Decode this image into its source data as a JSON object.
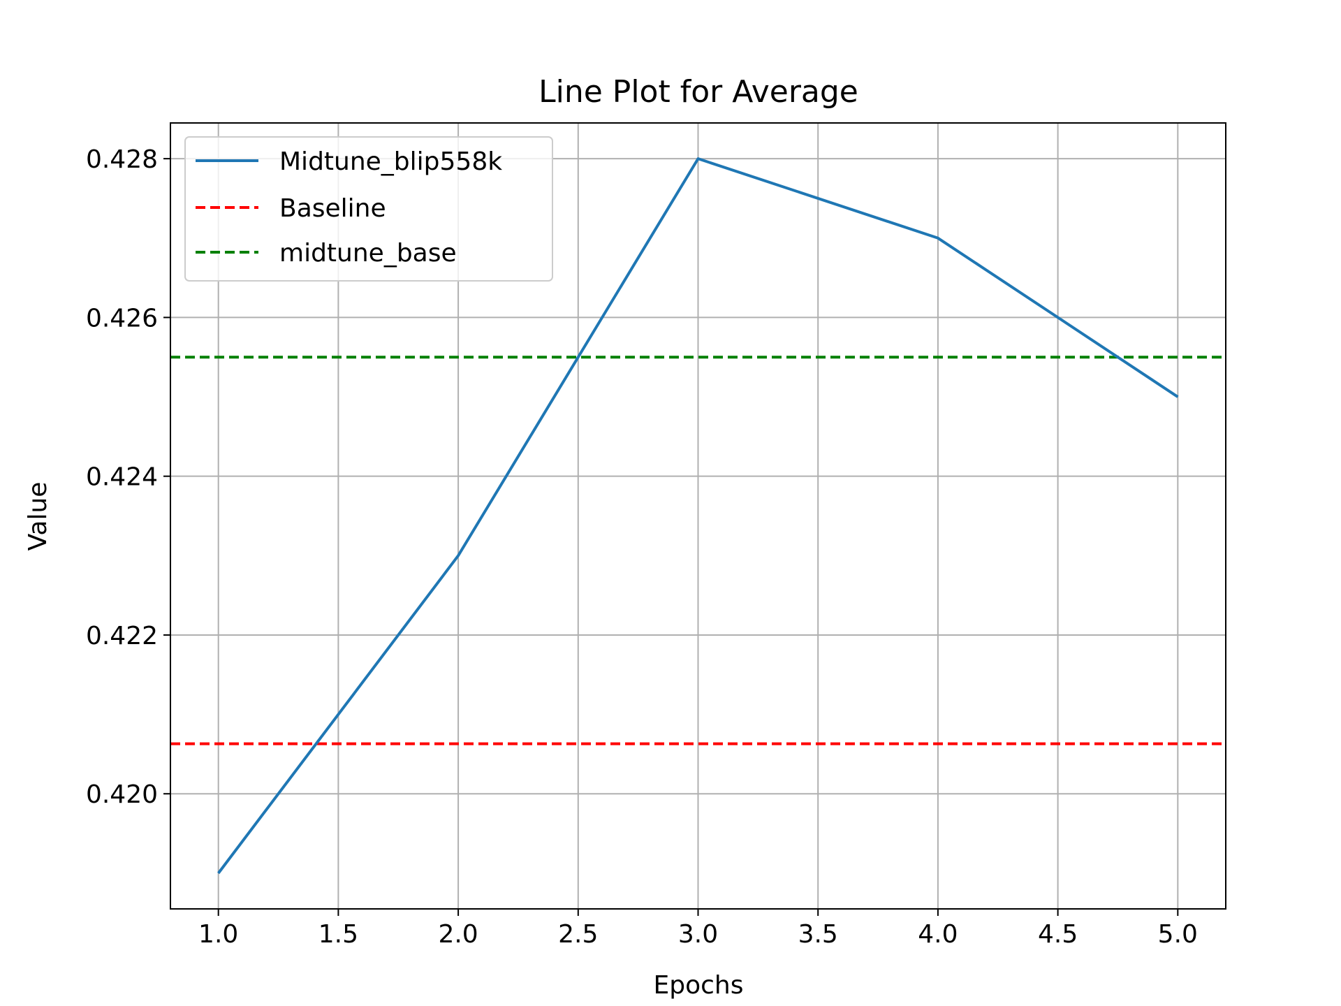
{
  "chart_data": {
    "type": "line",
    "title": "Line Plot for Average",
    "xlabel": "Epochs",
    "ylabel": "Value",
    "xlim": [
      0.8,
      5.2
    ],
    "ylim": [
      0.41855,
      0.42845
    ],
    "x_ticks": [
      1.0,
      1.5,
      2.0,
      2.5,
      3.0,
      3.5,
      4.0,
      4.5,
      5.0
    ],
    "x_tick_labels": [
      "1.0",
      "1.5",
      "2.0",
      "2.5",
      "3.0",
      "3.5",
      "4.0",
      "4.5",
      "5.0"
    ],
    "y_ticks": [
      0.42,
      0.422,
      0.424,
      0.426,
      0.428
    ],
    "y_tick_labels": [
      "0.420",
      "0.422",
      "0.424",
      "0.426",
      "0.428"
    ],
    "grid": true,
    "legend_position": "top-left",
    "series": [
      {
        "name": "Midtune_blip558k",
        "style": "solid",
        "color": "#1f77b4",
        "x": [
          1,
          2,
          3,
          4,
          5
        ],
        "values": [
          0.419,
          0.423,
          0.428,
          0.427,
          0.425
        ]
      }
    ],
    "hlines": [
      {
        "name": "Baseline",
        "style": "dashed",
        "color": "#ff0000",
        "value": 0.42063
      },
      {
        "name": "midtune_base",
        "style": "dashed",
        "color": "#008000",
        "value": 0.4255
      }
    ]
  }
}
